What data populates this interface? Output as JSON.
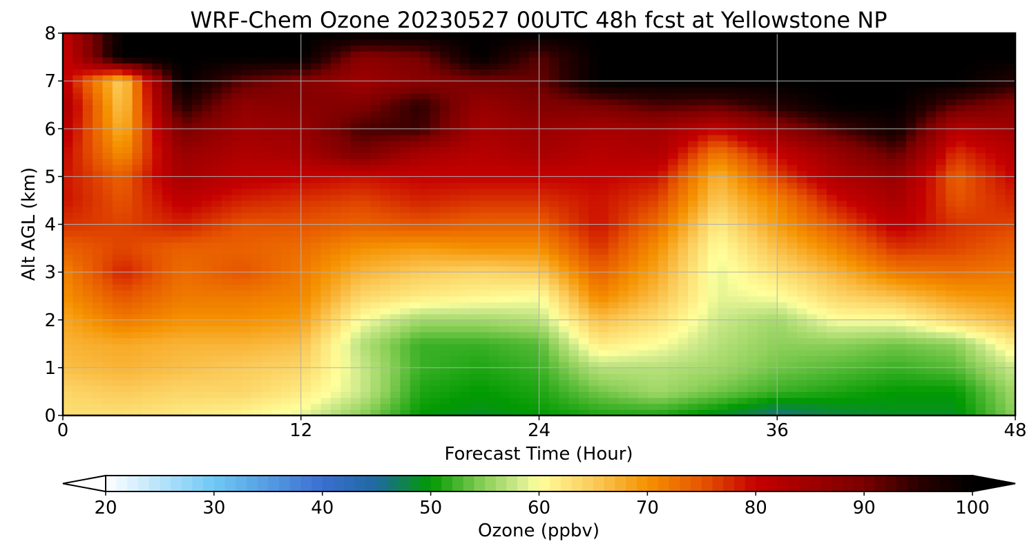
{
  "chart_data": {
    "type": "heatmap",
    "title": "WRF-Chem Ozone  20230527 00UTC 48h fcst at Yellowstone NP",
    "xlabel": "Forecast Time (Hour)",
    "ylabel": "Alt AGL (km)",
    "xlim": [
      0,
      48
    ],
    "ylim": [
      0,
      8
    ],
    "xticks": [
      "0",
      "12",
      "24",
      "36",
      "48"
    ],
    "yticks": [
      "0",
      "1",
      "2",
      "3",
      "4",
      "5",
      "6",
      "7",
      "8"
    ],
    "grid": true,
    "x": [
      0,
      3,
      6,
      9,
      12,
      15,
      18,
      21,
      24,
      27,
      30,
      33,
      36,
      39,
      42,
      45,
      48
    ],
    "y": [
      0,
      0.5,
      1,
      1.5,
      2,
      2.5,
      3,
      3.5,
      4,
      4.5,
      5,
      5.5,
      6,
      6.5,
      7,
      7.5,
      8
    ],
    "z": [
      [
        63,
        63,
        62,
        61,
        59,
        55,
        50,
        49,
        50,
        51,
        51,
        49,
        46,
        48,
        49,
        49,
        55
      ],
      [
        64,
        65,
        64,
        64,
        62,
        58,
        51,
        50,
        51,
        54,
        56,
        54,
        52,
        51,
        50,
        50,
        56
      ],
      [
        66,
        67,
        66,
        65,
        64,
        58,
        52,
        51,
        52,
        57,
        57,
        56,
        54,
        53,
        52,
        53,
        58
      ],
      [
        67,
        68,
        67,
        67,
        66,
        57,
        52,
        52,
        53,
        62,
        60,
        57,
        55,
        55,
        54,
        55,
        62
      ],
      [
        68,
        72,
        70,
        70,
        69,
        60,
        56,
        56,
        57,
        66,
        63,
        58,
        56,
        60,
        60,
        64,
        67
      ],
      [
        70,
        75,
        72,
        72,
        71,
        64,
        62,
        61,
        60,
        71,
        66,
        59,
        60,
        64,
        66,
        69,
        70
      ],
      [
        71,
        78,
        73,
        75,
        72,
        67,
        65,
        64,
        65,
        74,
        68,
        59,
        63,
        67,
        72,
        73,
        72
      ],
      [
        74,
        76,
        74,
        74,
        73,
        70,
        69,
        70,
        70,
        77,
        70,
        60,
        66,
        71,
        77,
        76,
        74
      ],
      [
        77,
        76,
        78,
        75,
        75,
        74,
        75,
        74,
        74,
        79,
        73,
        62,
        69,
        75,
        81,
        77,
        76
      ],
      [
        79,
        75,
        81,
        78,
        77,
        76,
        78,
        77,
        77,
        79,
        76,
        65,
        71,
        79,
        84,
        75,
        78
      ],
      [
        79,
        74,
        84,
        81,
        80,
        79,
        80,
        80,
        80,
        80,
        79,
        67,
        76,
        83,
        86,
        74,
        80
      ],
      [
        80,
        70,
        86,
        83,
        84,
        90,
        84,
        82,
        84,
        82,
        83,
        72,
        80,
        86,
        92,
        77,
        82
      ],
      [
        82,
        67,
        90,
        85,
        86,
        93,
        94,
        84,
        86,
        84,
        85,
        80,
        87,
        93,
        98,
        82,
        85
      ],
      [
        84,
        65,
        96,
        87,
        88,
        89,
        95,
        86,
        89,
        90,
        93,
        92,
        96,
        100,
        100,
        92,
        88
      ],
      [
        81,
        64,
        100,
        92,
        89,
        85,
        88,
        90,
        91,
        100,
        100,
        100,
        100,
        100,
        100,
        100,
        96
      ],
      [
        79,
        100,
        100,
        100,
        100,
        88,
        90,
        100,
        92,
        100,
        100,
        100,
        100,
        100,
        100,
        100,
        100
      ],
      [
        80,
        100,
        100,
        100,
        100,
        100,
        100,
        100,
        100,
        100,
        100,
        100,
        100,
        100,
        100,
        100,
        100
      ]
    ],
    "colorbar": {
      "label": "Ozone  (ppbv)",
      "min": 20,
      "max": 100,
      "ticks": [
        "20",
        "30",
        "40",
        "50",
        "60",
        "70",
        "80",
        "90",
        "100"
      ],
      "extend": "both",
      "stops": [
        {
          "v": 20,
          "c": "#ffffff"
        },
        {
          "v": 30,
          "c": "#6fc8f5"
        },
        {
          "v": 40,
          "c": "#3a6ed0"
        },
        {
          "v": 45,
          "c": "#1e6aa0"
        },
        {
          "v": 50,
          "c": "#019a01"
        },
        {
          "v": 55,
          "c": "#8ed05a"
        },
        {
          "v": 58,
          "c": "#cce98a"
        },
        {
          "v": 60,
          "c": "#ffff9c"
        },
        {
          "v": 65,
          "c": "#fbcb5a"
        },
        {
          "v": 70,
          "c": "#f59100"
        },
        {
          "v": 75,
          "c": "#e65500"
        },
        {
          "v": 80,
          "c": "#c50000"
        },
        {
          "v": 90,
          "c": "#7a0000"
        },
        {
          "v": 95,
          "c": "#2a0000"
        },
        {
          "v": 100,
          "c": "#000000"
        }
      ]
    }
  }
}
